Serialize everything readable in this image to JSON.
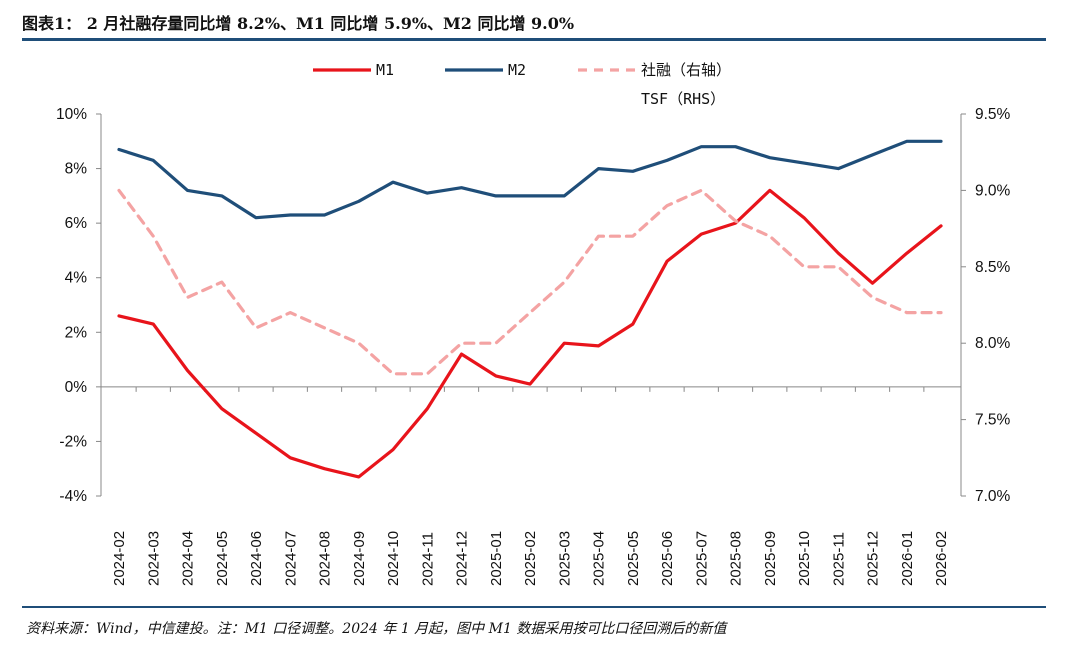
{
  "header": {
    "title": "图表1： 2 月社融存量同比增 8.2%、M1 同比增 5.9%、M2 同比增 9.0%"
  },
  "footer": {
    "source": "资料来源：Wind，中信建投。注：M1 口径调整。2024 年 1 月起，图中 M1 数据采用按可比口径回溯后的新值"
  },
  "colors": {
    "m1": "#e8141b",
    "m2": "#1f4e79",
    "tsf": "#f4a3a3",
    "axis": "#888888",
    "rule": "#1f4e79"
  },
  "chart_data": {
    "type": "line",
    "categories": [
      "2024-02",
      "2024-03",
      "2024-04",
      "2024-05",
      "2024-06",
      "2024-07",
      "2024-08",
      "2024-09",
      "2024-10",
      "2024-11",
      "2024-12",
      "2025-01",
      "2025-02",
      "2025-03",
      "2025-04",
      "2025-05",
      "2025-06",
      "2025-07",
      "2025-08",
      "2025-09",
      "2025-10",
      "2025-11",
      "2025-12",
      "2026-01",
      "2026-02"
    ],
    "left_axis": {
      "ylim": [
        -4,
        10
      ],
      "ticks": [
        -4,
        -2,
        0,
        2,
        4,
        6,
        8,
        10
      ],
      "tick_labels": [
        "-4%",
        "-2%",
        "0%",
        "2%",
        "4%",
        "6%",
        "8%",
        "10%"
      ]
    },
    "right_axis": {
      "ylim": [
        7.0,
        9.5
      ],
      "ticks": [
        7.0,
        7.5,
        8.0,
        8.5,
        9.0,
        9.5
      ],
      "tick_labels": [
        "7.0%",
        "7.5%",
        "8.0%",
        "8.5%",
        "9.0%",
        "9.5%"
      ]
    },
    "series": [
      {
        "name": "M1",
        "axis": "left",
        "style": "solid",
        "values": [
          2.6,
          2.3,
          0.6,
          -0.8,
          -1.7,
          -2.6,
          -3.0,
          -3.3,
          -2.3,
          -0.8,
          1.2,
          0.4,
          0.1,
          1.6,
          1.5,
          2.3,
          4.6,
          5.6,
          6.0,
          7.2,
          6.2,
          4.9,
          3.8,
          4.9,
          5.9
        ]
      },
      {
        "name": "M2",
        "axis": "left",
        "style": "solid",
        "values": [
          8.7,
          8.3,
          7.2,
          7.0,
          6.2,
          6.3,
          6.3,
          6.8,
          7.5,
          7.1,
          7.3,
          7.0,
          7.0,
          7.0,
          8.0,
          7.9,
          8.3,
          8.8,
          8.8,
          8.4,
          8.2,
          8.0,
          8.5,
          9.0,
          9.0
        ]
      },
      {
        "name": "社融（右轴）",
        "name_line2": "TSF（RHS）",
        "axis": "right",
        "style": "dashed",
        "values": [
          9.0,
          8.7,
          8.3,
          8.4,
          8.1,
          8.2,
          8.1,
          8.0,
          7.8,
          7.8,
          8.0,
          8.0,
          8.2,
          8.4,
          8.7,
          8.7,
          8.9,
          9.0,
          8.8,
          8.7,
          8.5,
          8.5,
          8.3,
          8.2,
          8.2
        ]
      }
    ]
  }
}
